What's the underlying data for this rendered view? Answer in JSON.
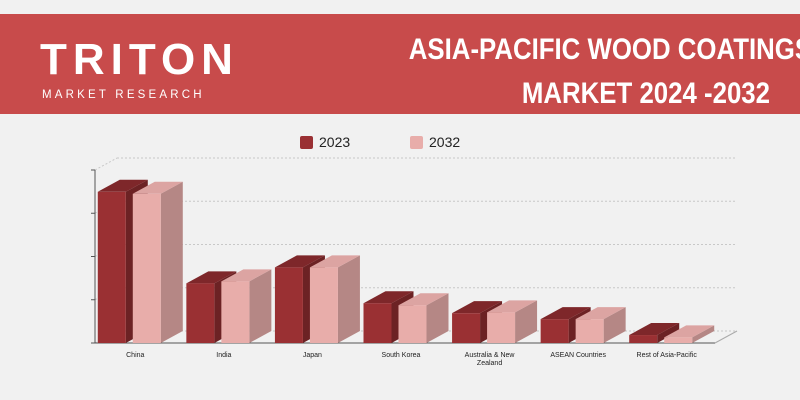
{
  "brand": {
    "name": "TRITON",
    "tagline": "MARKET RESEARCH"
  },
  "header": {
    "title_line1": "ASIA-PACIFIC WOOD COATINGS",
    "title_line2": "MARKET 2024 -2032",
    "bg_color": "#c84b4b"
  },
  "chart_data": {
    "type": "bar",
    "style": "3d-clustered",
    "categories": [
      "China",
      "India",
      "Japan",
      "South Korea",
      "Australia & New Zealand",
      "ASEAN Countries",
      "Rest of Asia-Pacific"
    ],
    "series": [
      {
        "name": "2023",
        "color": "#9a3033",
        "values": [
          3.8,
          1.5,
          1.9,
          1.0,
          0.75,
          0.6,
          0.2
        ]
      },
      {
        "name": "2032",
        "color": "#e8adaa",
        "values": [
          3.75,
          1.55,
          1.9,
          0.95,
          0.77,
          0.6,
          0.14
        ]
      }
    ],
    "ylim": [
      0,
      4
    ],
    "y_tick_labels_shown": false,
    "grid": true,
    "legend_position": "top"
  }
}
